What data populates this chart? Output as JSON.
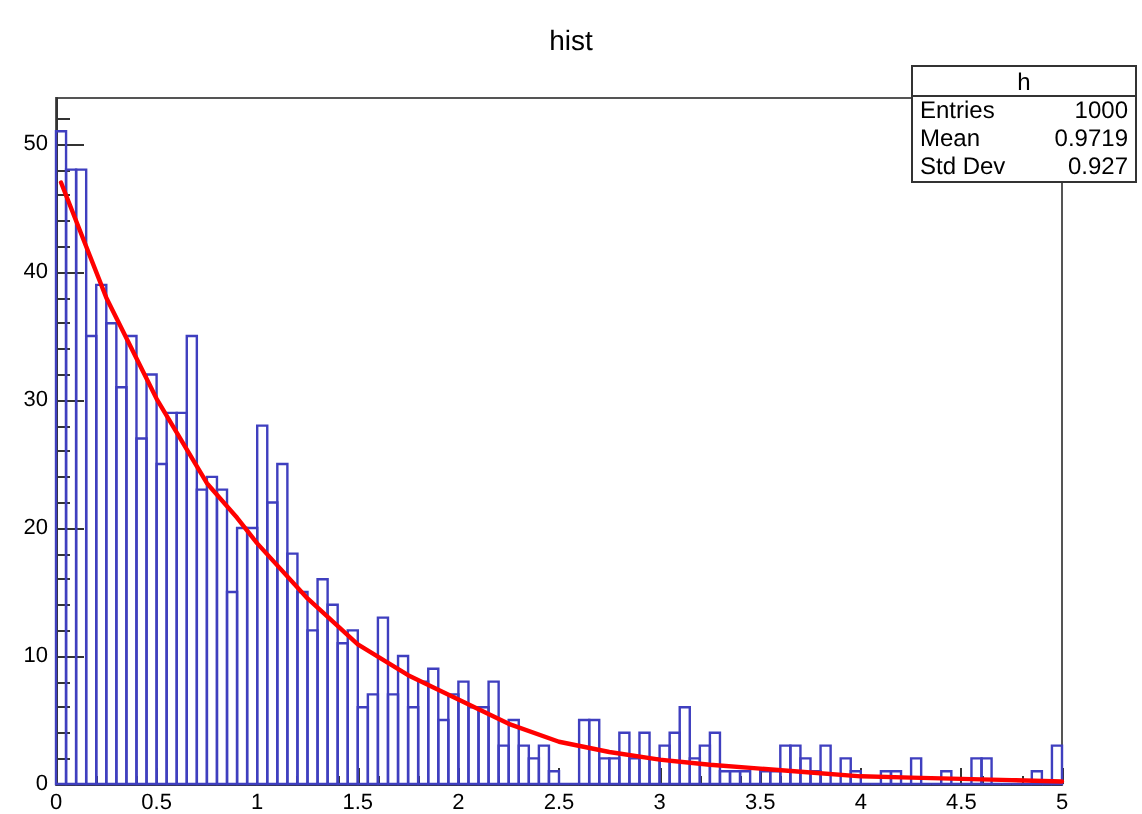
{
  "chart_data": {
    "type": "histogram",
    "title": "hist",
    "bins": [
      0,
      0.05,
      0.1,
      0.15,
      0.2,
      0.25,
      0.3,
      0.35,
      0.4,
      0.45,
      0.5,
      0.55,
      0.6,
      0.65,
      0.7,
      0.75,
      0.8,
      0.85,
      0.9,
      0.95,
      1,
      1.05,
      1.1,
      1.15,
      1.2,
      1.25,
      1.3,
      1.35,
      1.4,
      1.45,
      1.5,
      1.55,
      1.6,
      1.65,
      1.7,
      1.75,
      1.8,
      1.85,
      1.9,
      1.95,
      2,
      2.05,
      2.1,
      2.15,
      2.2,
      2.25,
      2.3,
      2.35,
      2.4,
      2.45,
      2.5,
      2.55,
      2.6,
      2.65,
      2.7,
      2.75,
      2.8,
      2.85,
      2.9,
      2.95,
      3,
      3.05,
      3.1,
      3.15,
      3.2,
      3.25,
      3.3,
      3.35,
      3.4,
      3.45,
      3.5,
      3.55,
      3.6,
      3.65,
      3.7,
      3.75,
      3.8,
      3.85,
      3.9,
      3.95,
      4,
      4.05,
      4.1,
      4.15,
      4.2,
      4.25,
      4.3,
      4.35,
      4.4,
      4.45,
      4.5,
      4.55,
      4.6,
      4.65,
      4.7,
      4.75,
      4.8,
      4.85,
      4.9,
      4.95,
      5
    ],
    "series": [
      {
        "color": "#3f3fbf",
        "values": [
          51,
          48,
          48,
          35,
          39,
          36,
          31,
          35,
          27,
          32,
          25,
          29,
          29,
          35,
          23,
          24,
          23,
          15,
          20,
          20,
          28,
          22,
          25,
          18,
          15,
          12,
          16,
          14,
          11,
          12,
          6,
          7,
          13,
          7,
          10,
          6,
          8,
          9,
          5,
          7,
          8,
          6,
          6,
          8,
          3,
          5,
          3,
          2,
          3,
          1,
          0,
          0,
          5,
          5,
          2,
          2,
          4,
          2,
          4,
          2,
          3,
          4,
          6,
          2,
          3,
          4,
          1,
          1,
          1,
          0,
          1,
          1,
          3,
          3,
          2,
          1,
          3,
          0,
          2,
          1,
          0,
          0,
          1,
          1,
          0,
          2,
          0,
          0,
          1,
          0,
          0,
          2,
          2,
          0,
          0,
          0,
          0,
          1,
          0,
          3
        ]
      },
      {
        "type": "line",
        "color": "#ff0000",
        "x": [
          0.025,
          0.25,
          0.5,
          0.75,
          0.9,
          1,
          1.25,
          1.5,
          1.75,
          2,
          2.25,
          2.5,
          2.75,
          3,
          3.25,
          3.5,
          3.75,
          4,
          4.25,
          4.5,
          4.75,
          5
        ],
        "values": [
          47,
          38,
          30.1,
          23.5,
          20.8,
          18.8,
          14.5,
          10.9,
          8.5,
          6.6,
          4.7,
          3.3,
          2.5,
          1.9,
          1.5,
          1.2,
          0.9,
          0.6,
          0.5,
          0.4,
          0.3,
          0.2
        ]
      }
    ],
    "xlim": [
      0,
      5
    ],
    "xticks": [
      0,
      0.5,
      1,
      1.5,
      2,
      2.5,
      3,
      3.5,
      4,
      4.5,
      5
    ],
    "ylim": [
      0,
      53.6
    ],
    "yticks": [
      0,
      10,
      20,
      30,
      40,
      50
    ],
    "grid": false,
    "marker": "none",
    "line_style": "solid",
    "annotations": [
      "h",
      "Entries 1000",
      "Mean 0.9719",
      "Std Dev 0.927"
    ]
  }
}
